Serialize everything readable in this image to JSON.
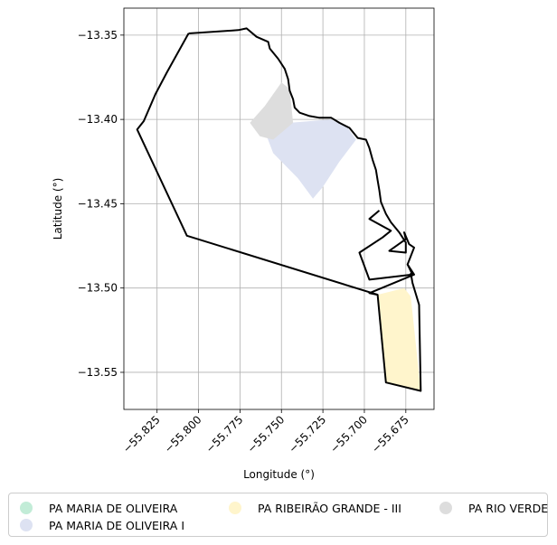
{
  "chart_data": {
    "type": "map",
    "title": "",
    "xlabel": "Longitude (°)",
    "ylabel": "Latitude (°)",
    "xlim": [
      -55.845,
      -55.658
    ],
    "ylim": [
      -13.572,
      -13.334
    ],
    "xticks": [
      -55.825,
      -55.8,
      -55.775,
      -55.75,
      -55.725,
      -55.7,
      -55.675
    ],
    "xtick_labels": [
      "−55.825",
      "−55.800",
      "−55.775",
      "−55.750",
      "−55.725",
      "−55.700",
      "−55.675"
    ],
    "yticks": [
      -13.35,
      -13.4,
      -13.45,
      -13.5,
      -13.55
    ],
    "ytick_labels": [
      "−13.35",
      "−13.40",
      "−13.45",
      "−13.50",
      "−13.55"
    ],
    "grid": true,
    "legend_position": "bottom",
    "series": [
      {
        "name": "PA MARIA DE OLIVEIRA",
        "color": "#c2ecd7",
        "polygons": []
      },
      {
        "name": "PA MARIA DE OLIVEIRA I",
        "color": "#dde2f2",
        "polygons": [
          [
            [
              -55.76,
              -13.407
            ],
            [
              -55.745,
              -13.402
            ],
            [
              -55.72,
              -13.4
            ],
            [
              -55.71,
              -13.405
            ],
            [
              -55.705,
              -13.412
            ],
            [
              -55.715,
              -13.425
            ],
            [
              -55.725,
              -13.44
            ],
            [
              -55.731,
              -13.447
            ],
            [
              -55.74,
              -13.435
            ],
            [
              -55.755,
              -13.42
            ]
          ]
        ]
      },
      {
        "name": "PA RIBEIRÃO GRANDE - III",
        "color": "#fff5cc",
        "polygons": [
          [
            [
              -55.692,
              -13.504
            ],
            [
              -55.676,
              -13.5
            ],
            [
              -55.672,
              -13.505
            ],
            [
              -55.666,
              -13.561
            ],
            [
              -55.687,
              -13.556
            ]
          ]
        ]
      },
      {
        "name": "PA RIO VERDE",
        "color": "#dddddd",
        "polygons": [
          [
            [
              -55.769,
              -13.402
            ],
            [
              -55.76,
              -13.392
            ],
            [
              -55.75,
              -13.378
            ],
            [
              -55.745,
              -13.382
            ],
            [
              -55.743,
              -13.402
            ],
            [
              -55.755,
              -13.412
            ],
            [
              -55.763,
              -13.41
            ]
          ]
        ]
      }
    ],
    "outlines": [
      {
        "color": "#000000",
        "points": [
          [
            -55.806,
            -13.349
          ],
          [
            -55.776,
            -13.347
          ],
          [
            -55.771,
            -13.346
          ],
          [
            -55.765,
            -13.351
          ],
          [
            -55.758,
            -13.354
          ],
          [
            -55.757,
            -13.358
          ],
          [
            -55.752,
            -13.364
          ],
          [
            -55.748,
            -13.37
          ],
          [
            -55.746,
            -13.376
          ],
          [
            -55.745,
            -13.383
          ],
          [
            -55.743,
            -13.388
          ],
          [
            -55.742,
            -13.393
          ],
          [
            -55.739,
            -13.396
          ],
          [
            -55.733,
            -13.398
          ],
          [
            -55.727,
            -13.399
          ],
          [
            -55.72,
            -13.399
          ],
          [
            -55.715,
            -13.402
          ],
          [
            -55.709,
            -13.405
          ],
          [
            -55.704,
            -13.411
          ],
          [
            -55.699,
            -13.412
          ],
          [
            -55.697,
            -13.417
          ],
          [
            -55.695,
            -13.424
          ],
          [
            -55.693,
            -13.43
          ],
          [
            -55.692,
            -13.436
          ],
          [
            -55.691,
            -13.442
          ],
          [
            -55.69,
            -13.449
          ],
          [
            -55.687,
            -13.456
          ],
          [
            -55.684,
            -13.461
          ],
          [
            -55.679,
            -13.467
          ],
          [
            -55.675,
            -13.473
          ],
          [
            -55.675,
            -13.479
          ],
          [
            -55.685,
            -13.478
          ],
          [
            -55.675,
            -13.471
          ],
          [
            -55.676,
            -13.467
          ],
          [
            -55.673,
            -13.474
          ],
          [
            -55.67,
            -13.476
          ],
          [
            -55.674,
            -13.486
          ],
          [
            -55.671,
            -13.492
          ],
          [
            -55.697,
            -13.495
          ],
          [
            -55.703,
            -13.479
          ],
          [
            -55.689,
            -13.47
          ],
          [
            -55.684,
            -13.466
          ],
          [
            -55.697,
            -13.459
          ],
          [
            -55.691,
            -13.454
          ]
        ]
      },
      {
        "color": "#000000",
        "points": [
          [
            -55.674,
            -13.486
          ],
          [
            -55.67,
            -13.492
          ],
          [
            -55.697,
            -13.503
          ],
          [
            -55.692,
            -13.504
          ],
          [
            -55.687,
            -13.556
          ],
          [
            -55.666,
            -13.561
          ],
          [
            -55.667,
            -13.51
          ],
          [
            -55.671,
            -13.497
          ],
          [
            -55.672,
            -13.491
          ]
        ]
      },
      {
        "color": "#000000",
        "points": [
          [
            -55.692,
            -13.504
          ],
          [
            -55.807,
            -13.469
          ],
          [
            -55.837,
            -13.406
          ],
          [
            -55.833,
            -13.401
          ],
          [
            -55.826,
            -13.385
          ],
          [
            -55.819,
            -13.372
          ],
          [
            -55.806,
            -13.349
          ]
        ]
      }
    ]
  }
}
